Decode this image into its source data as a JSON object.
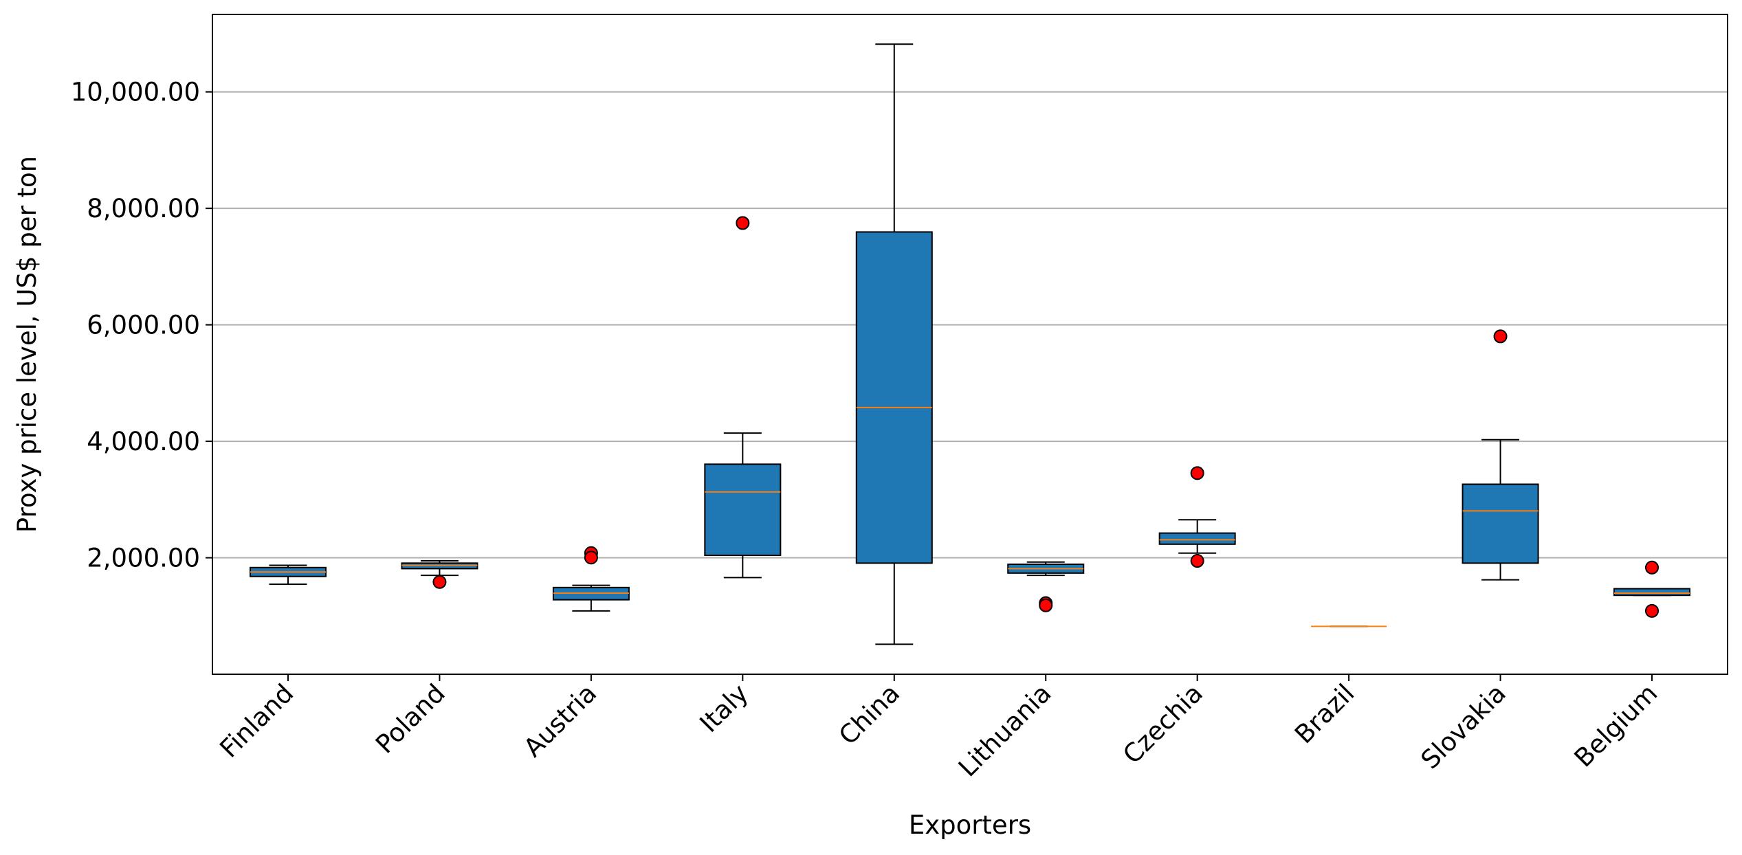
{
  "chart_data": {
    "type": "box",
    "xlabel": "Exporters",
    "ylabel": "Proxy price level, US$ per ton",
    "categories": [
      "Finland",
      "Poland",
      "Austria",
      "Italy",
      "China",
      "Lithuania",
      "Czechia",
      "Brazil",
      "Slovakia",
      "Belgium"
    ],
    "boxes": [
      {
        "whislo": 1546,
        "q1": 1679,
        "median": 1756,
        "q3": 1832,
        "whishi": 1870,
        "outliers": []
      },
      {
        "whislo": 1698,
        "q1": 1813,
        "median": 1870,
        "q3": 1908,
        "whishi": 1947,
        "outliers": [
          1584
        ]
      },
      {
        "whislo": 1088,
        "q1": 1279,
        "median": 1393,
        "q3": 1489,
        "whishi": 1527,
        "outliers": [
          2080,
          2004
        ]
      },
      {
        "whislo": 1660,
        "q1": 2042,
        "median": 3130,
        "q3": 3607,
        "whishi": 4141,
        "outliers": [
          7748
        ]
      },
      {
        "whislo": 515,
        "q1": 1908,
        "median": 4580,
        "q3": 7595,
        "whishi": 10820,
        "outliers": []
      },
      {
        "whislo": 1698,
        "q1": 1737,
        "median": 1813,
        "q3": 1889,
        "whishi": 1927,
        "outliers": [
          1221,
          1183
        ]
      },
      {
        "whislo": 2080,
        "q1": 2233,
        "median": 2309,
        "q3": 2424,
        "whishi": 2653,
        "outliers": [
          3454,
          1947
        ]
      },
      {
        "whislo": 821,
        "q1": 821,
        "median": 821,
        "q3": 821,
        "whishi": 821,
        "outliers": []
      },
      {
        "whislo": 1622,
        "q1": 1908,
        "median": 2805,
        "q3": 3263,
        "whishi": 4027,
        "outliers": [
          5802
        ]
      },
      {
        "whislo": 1355,
        "q1": 1355,
        "median": 1393,
        "q3": 1469,
        "whishi": 1469,
        "outliers": [
          1832,
          1088
        ]
      }
    ],
    "box_color": "#1f77b4",
    "median_color": "#ff7f0e",
    "outlier_color": "#ff0000",
    "ylim": [
      0,
      11330
    ],
    "yticks": [
      {
        "value": 2000,
        "label": "2,000.00"
      },
      {
        "value": 4000,
        "label": "4,000.00"
      },
      {
        "value": 6000,
        "label": "6,000.00"
      },
      {
        "value": 8000,
        "label": "8,000.00"
      },
      {
        "value": 10000,
        "label": "10,000.00"
      }
    ],
    "grid": true
  }
}
